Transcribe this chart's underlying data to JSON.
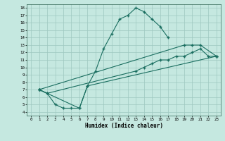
{
  "bg_color": "#c5e8e0",
  "grid_color": "#9ec8c0",
  "line_color": "#1a6e60",
  "xlabel": "Humidex (Indice chaleur)",
  "xlim": [
    -0.5,
    23.5
  ],
  "ylim": [
    3.5,
    18.5
  ],
  "xticks": [
    0,
    1,
    2,
    3,
    4,
    5,
    6,
    7,
    8,
    9,
    10,
    11,
    12,
    13,
    14,
    15,
    16,
    17,
    18,
    19,
    20,
    21,
    22,
    23
  ],
  "yticks": [
    4,
    5,
    6,
    7,
    8,
    9,
    10,
    11,
    12,
    13,
    14,
    15,
    16,
    17,
    18
  ],
  "line1_x": [
    1,
    2,
    3,
    4,
    5,
    6,
    7,
    8,
    9,
    10,
    11,
    12,
    13,
    14,
    15,
    16,
    17
  ],
  "line1_y": [
    7,
    6.5,
    5,
    4.5,
    4.5,
    4.5,
    7.5,
    9.5,
    12.5,
    14.5,
    16.5,
    17.0,
    18.0,
    17.5,
    16.5,
    15.5,
    14.0
  ],
  "line2_x": [
    1,
    2,
    13,
    14,
    15,
    16,
    17,
    18,
    19,
    20,
    21,
    22,
    23
  ],
  "line2_y": [
    7,
    6.5,
    9.5,
    10.0,
    10.5,
    11.0,
    11.0,
    11.5,
    11.5,
    12.0,
    12.5,
    11.5,
    11.5
  ],
  "line3_x": [
    1,
    19,
    20,
    21,
    23
  ],
  "line3_y": [
    7,
    13.0,
    13.0,
    13.0,
    11.5
  ],
  "line4_x": [
    1,
    6,
    7,
    23
  ],
  "line4_y": [
    7,
    4.5,
    7.5,
    11.5
  ]
}
